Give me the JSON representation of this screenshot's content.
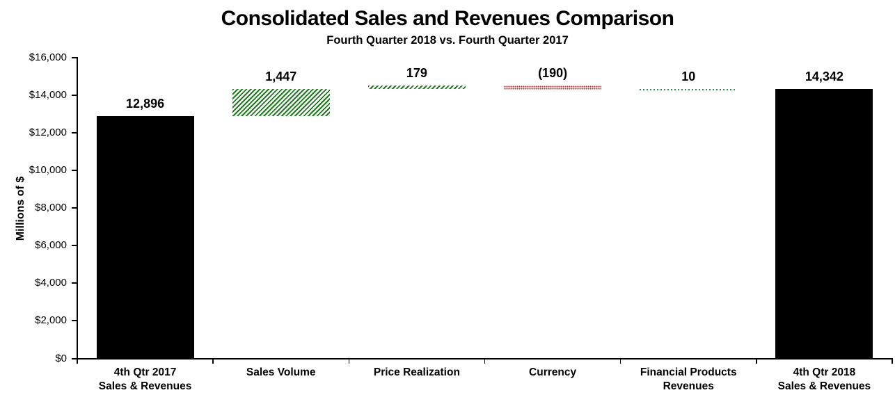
{
  "chart_data": {
    "type": "bar",
    "subtype": "waterfall",
    "title": "Consolidated Sales and Revenues Comparison",
    "subtitle": "Fourth Quarter 2018 vs. Fourth Quarter 2017",
    "xlabel": "",
    "ylabel": "Millions of $",
    "ylim": [
      0,
      16000
    ],
    "ytick_interval": 2000,
    "ytick_labels_top_to_bottom": [
      "$16,000",
      "$14,000",
      "$12,000",
      "$10,000",
      "$8,000",
      "$6,000",
      "$4,000",
      "$2,000",
      "$0"
    ],
    "grid": false,
    "legend": false,
    "categories": [
      "4th Qtr 2017 Sales & Revenues",
      "Sales Volume",
      "Price Realization",
      "Currency",
      "Financial Products Revenues",
      "4th Qtr 2018 Sales & Revenues"
    ],
    "bars": [
      {
        "category_lines": [
          "4th Qtr 2017",
          "Sales & Revenues"
        ],
        "label": "12,896",
        "value": 12896,
        "base": 0,
        "top": 12896,
        "style": "solid"
      },
      {
        "category_lines": [
          "Sales Volume"
        ],
        "label": "1,447",
        "value": 1447,
        "base": 12896,
        "top": 14343,
        "style": "hatch"
      },
      {
        "category_lines": [
          "Price Realization"
        ],
        "label": "179",
        "value": 179,
        "base": 14343,
        "top": 14522,
        "style": "hatch"
      },
      {
        "category_lines": [
          "Currency"
        ],
        "label": "(190)",
        "value": -190,
        "base": 14332,
        "top": 14522,
        "style": "dots"
      },
      {
        "category_lines": [
          "Financial Products",
          "Revenues"
        ],
        "label": "10",
        "value": 10,
        "base": 14332,
        "top": 14342,
        "style": "dotline"
      },
      {
        "category_lines": [
          "4th Qtr 2018",
          "Sales & Revenues"
        ],
        "label": "14,342",
        "value": 14342,
        "base": 0,
        "top": 14342,
        "style": "solid"
      }
    ],
    "colors": {
      "solid_bar": "#000000",
      "hatch_green": "#1f7a1f",
      "dots_red": "#b03434",
      "dotline_green": "#2e8b57",
      "axis": "#000000",
      "text": "#000000"
    }
  }
}
